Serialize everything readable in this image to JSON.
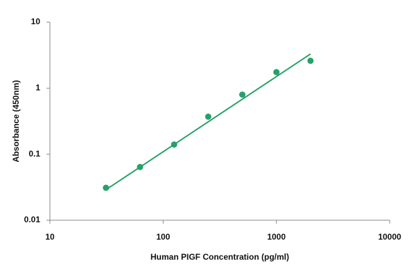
{
  "chart_data": {
    "type": "scatter",
    "xlabel": "Human PIGF Concentration (pg/ml)",
    "ylabel": "Absorbance (450nm)",
    "x": [
      31.25,
      62.5,
      125,
      250,
      500,
      1000,
      2000
    ],
    "values": [
      0.031,
      0.064,
      0.14,
      0.37,
      0.8,
      1.75,
      2.6
    ],
    "color": "#27a06a",
    "trend": {
      "x": [
        31.25,
        2000
      ],
      "values": [
        0.029,
        3.3
      ]
    },
    "xlog": true,
    "ylog": true,
    "xlim": [
      10,
      10000
    ],
    "ylim": [
      0.01,
      10
    ],
    "xticks": [
      10,
      100,
      1000,
      10000
    ],
    "yticks": [
      0.01,
      0.1,
      1,
      10
    ]
  }
}
